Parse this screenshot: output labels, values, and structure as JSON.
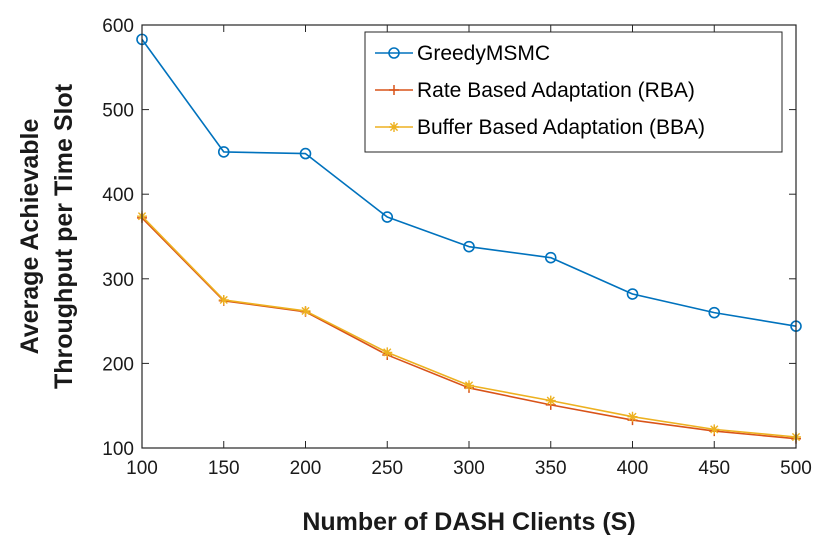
{
  "chart_data": {
    "type": "line",
    "title": "",
    "xlabel": "Number of DASH Clients (S)",
    "ylabel_lines": [
      "Average Achievable",
      "Throughput per Time Slot"
    ],
    "x": [
      100,
      150,
      200,
      250,
      300,
      350,
      400,
      450,
      500
    ],
    "xlim": [
      100,
      500
    ],
    "ylim": [
      100,
      600
    ],
    "xticks": [
      100,
      150,
      200,
      250,
      300,
      350,
      400,
      450,
      500
    ],
    "yticks": [
      100,
      200,
      300,
      400,
      500,
      600
    ],
    "legend_position": "top-right",
    "series": [
      {
        "name": "GreedyMSMC",
        "color": "#0072BD",
        "marker": "circle",
        "values": [
          583,
          450,
          448,
          373,
          338,
          325,
          282,
          260,
          244
        ]
      },
      {
        "name": "Rate Based Adaptation (RBA)",
        "color": "#D95319",
        "marker": "plus",
        "values": [
          372,
          274,
          261,
          210,
          171,
          151,
          133,
          120,
          111
        ]
      },
      {
        "name": "Buffer Based Adaptation (BBA)",
        "color": "#EDB120",
        "marker": "asterisk",
        "values": [
          374,
          275,
          262,
          213,
          174,
          156,
          137,
          122,
          113
        ]
      }
    ]
  }
}
